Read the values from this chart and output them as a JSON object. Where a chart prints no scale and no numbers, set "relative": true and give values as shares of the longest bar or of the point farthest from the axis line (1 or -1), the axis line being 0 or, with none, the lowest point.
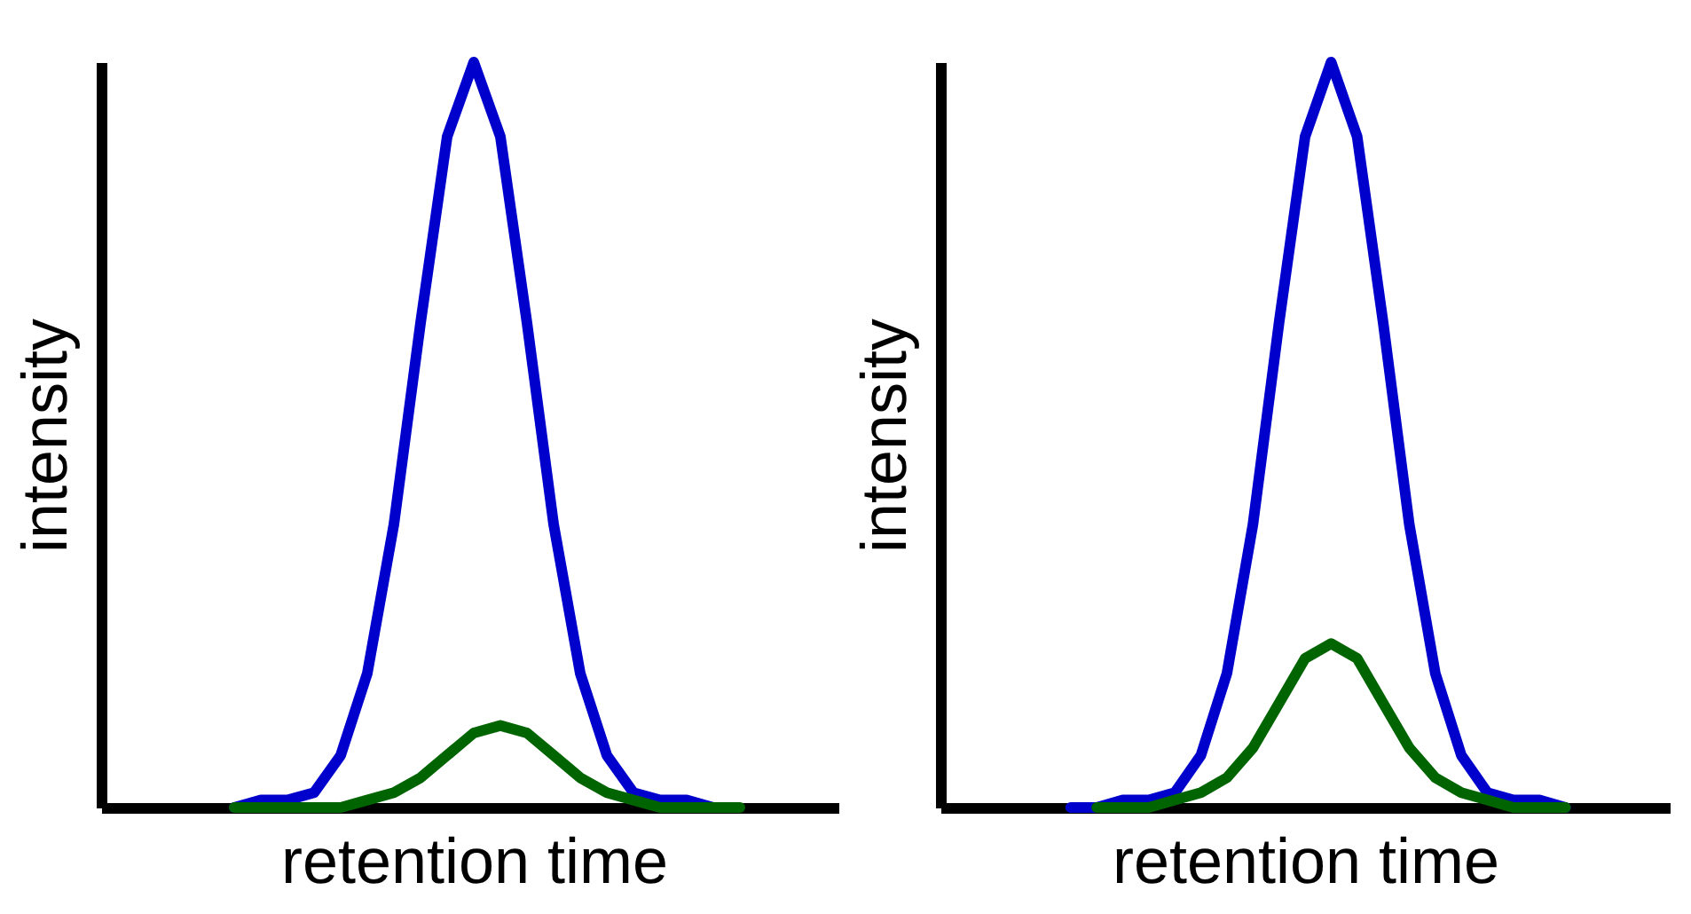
{
  "chart_data": [
    {
      "type": "line",
      "xlabel": "retention time",
      "ylabel": "intensity",
      "relative": true,
      "tick_labels": false,
      "categories": [
        null,
        null,
        null,
        null,
        null,
        null,
        null,
        null,
        null,
        null,
        null,
        null,
        null,
        null,
        null,
        null,
        null,
        null,
        null,
        null,
        null,
        null,
        null,
        null,
        null,
        null,
        null,
        null,
        null
      ],
      "series": [
        {
          "color": "#0000cc",
          "values": [
            null,
            null,
            null,
            null,
            null,
            0,
            0.01,
            0.01,
            0.02,
            0.07,
            0.18,
            0.38,
            0.65,
            0.9,
            1,
            0.9,
            0.65,
            0.38,
            0.18,
            0.07,
            0.02,
            0.01,
            0.01,
            0,
            null,
            null,
            null,
            null,
            null
          ]
        },
        {
          "color": "#006400",
          "values": [
            null,
            null,
            null,
            null,
            null,
            0,
            0,
            0,
            0,
            0,
            0.01,
            0.02,
            0.04,
            0.07,
            0.1,
            0.11,
            0.1,
            0.07,
            0.04,
            0.02,
            0.01,
            0,
            0,
            0,
            0,
            null,
            null,
            null,
            null
          ]
        }
      ]
    },
    {
      "type": "line",
      "xlabel": "retention time",
      "ylabel": "intensity",
      "relative": true,
      "tick_labels": false,
      "categories": [
        null,
        null,
        null,
        null,
        null,
        null,
        null,
        null,
        null,
        null,
        null,
        null,
        null,
        null,
        null,
        null,
        null,
        null,
        null,
        null,
        null,
        null,
        null,
        null,
        null,
        null,
        null,
        null,
        null
      ],
      "series": [
        {
          "color": "#0000cc",
          "values": [
            null,
            null,
            null,
            null,
            null,
            0,
            0,
            0.01,
            0.01,
            0.02,
            0.07,
            0.18,
            0.38,
            0.65,
            0.9,
            1,
            0.9,
            0.65,
            0.38,
            0.18,
            0.07,
            0.02,
            0.01,
            0.01,
            0,
            null,
            null,
            null,
            null
          ]
        },
        {
          "color": "#006400",
          "values": [
            null,
            null,
            null,
            null,
            null,
            null,
            0,
            0,
            0,
            0.01,
            0.02,
            0.04,
            0.08,
            0.14,
            0.2,
            0.22,
            0.2,
            0.14,
            0.08,
            0.04,
            0.02,
            0.01,
            0,
            0,
            0,
            null,
            null,
            null,
            null
          ]
        }
      ]
    }
  ]
}
